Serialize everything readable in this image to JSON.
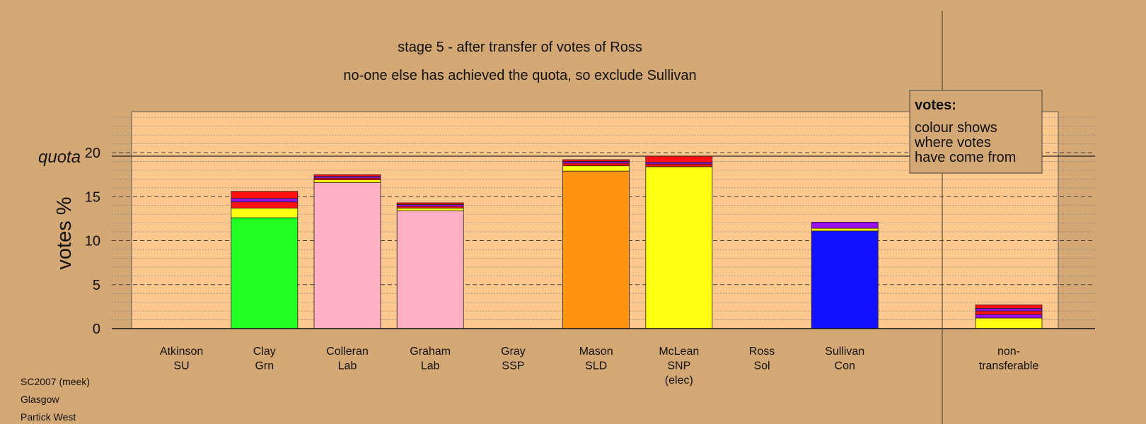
{
  "chart_data": {
    "type": "bar",
    "title": "stage 5 - after transfer of votes of Ross",
    "subtitle": "no-one else has achieved the quota, so exclude Sullivan",
    "ylabel": "votes %",
    "quota_label": "quota",
    "quota": 19.6,
    "ylim": [
      0,
      24.6
    ],
    "yticks": [
      0,
      5,
      10,
      15,
      20
    ],
    "grid": true,
    "legend": {
      "position": "top-right",
      "title": "votes:",
      "lines": [
        "colour shows",
        "where votes",
        "have come from"
      ]
    },
    "categories": [
      {
        "name": "Atkinson",
        "party": "SU",
        "note": "",
        "segments": []
      },
      {
        "name": "Clay",
        "party": "Grn",
        "note": "",
        "segments": [
          {
            "from": "own",
            "value": 12.6,
            "color": "#22ff22"
          },
          {
            "from": "transfer",
            "value": 1.1,
            "color": "#ffff11"
          },
          {
            "from": "transfer",
            "value": 0.7,
            "color": "#ff1111"
          },
          {
            "from": "transfer",
            "value": 0.4,
            "color": "#9911ee"
          },
          {
            "from": "transfer",
            "value": 0.8,
            "color": "#ff1111"
          }
        ]
      },
      {
        "name": "Colleran",
        "party": "Lab",
        "note": "",
        "segments": [
          {
            "from": "own",
            "value": 16.6,
            "color": "#ffb0c4"
          },
          {
            "from": "transfer",
            "value": 0.3,
            "color": "#ffff11"
          },
          {
            "from": "transfer",
            "value": 0.2,
            "color": "#ff1111"
          },
          {
            "from": "transfer",
            "value": 0.2,
            "color": "#9911ee"
          },
          {
            "from": "transfer",
            "value": 0.2,
            "color": "#ff1111"
          }
        ]
      },
      {
        "name": "Graham",
        "party": "Lab",
        "note": "",
        "segments": [
          {
            "from": "own",
            "value": 13.4,
            "color": "#ffb0c4"
          },
          {
            "from": "transfer",
            "value": 0.3,
            "color": "#ffff11"
          },
          {
            "from": "transfer",
            "value": 0.2,
            "color": "#ff1111"
          },
          {
            "from": "transfer",
            "value": 0.2,
            "color": "#9911ee"
          },
          {
            "from": "transfer",
            "value": 0.2,
            "color": "#ff1111"
          }
        ]
      },
      {
        "name": "Gray",
        "party": "SSP",
        "note": "",
        "segments": []
      },
      {
        "name": "Mason",
        "party": "SLD",
        "note": "",
        "segments": [
          {
            "from": "own",
            "value": 17.9,
            "color": "#ff9410"
          },
          {
            "from": "transfer",
            "value": 0.6,
            "color": "#ffff11"
          },
          {
            "from": "transfer",
            "value": 0.3,
            "color": "#ff1111"
          },
          {
            "from": "transfer",
            "value": 0.2,
            "color": "#9911ee"
          },
          {
            "from": "transfer",
            "value": 0.2,
            "color": "#ff1111"
          }
        ]
      },
      {
        "name": "McLean",
        "party": "SNP",
        "note": "(elec)",
        "segments": [
          {
            "from": "own",
            "value": 18.4,
            "color": "#ffff11"
          },
          {
            "from": "transfer",
            "value": 0.3,
            "color": "#ff1111"
          },
          {
            "from": "transfer",
            "value": 0.2,
            "color": "#9911ee"
          },
          {
            "from": "transfer",
            "value": 0.7,
            "color": "#ff1111"
          }
        ]
      },
      {
        "name": "Ross",
        "party": "Sol",
        "note": "",
        "segments": []
      },
      {
        "name": "Sullivan",
        "party": "Con",
        "note": "",
        "segments": [
          {
            "from": "own",
            "value": 11.1,
            "color": "#1111ff"
          },
          {
            "from": "transfer",
            "value": 0.3,
            "color": "#ffff11"
          },
          {
            "from": "transfer",
            "value": 0.7,
            "color": "#9911ee"
          }
        ]
      }
    ],
    "nontransferable": {
      "label_line1": "non-",
      "label_line2": "transferable",
      "segments": [
        {
          "from": "transfer",
          "value": 1.2,
          "color": "#ffff11"
        },
        {
          "from": "transfer",
          "value": 0.4,
          "color": "#9911ee"
        },
        {
          "from": "transfer",
          "value": 0.4,
          "color": "#ff1111"
        },
        {
          "from": "transfer",
          "value": 0.3,
          "color": "#9911ee"
        },
        {
          "from": "transfer",
          "value": 0.4,
          "color": "#ff1111"
        }
      ]
    }
  },
  "footer": {
    "line1": "SC2007 (meek)",
    "line2": "Glasgow",
    "line3": "Partick West"
  }
}
